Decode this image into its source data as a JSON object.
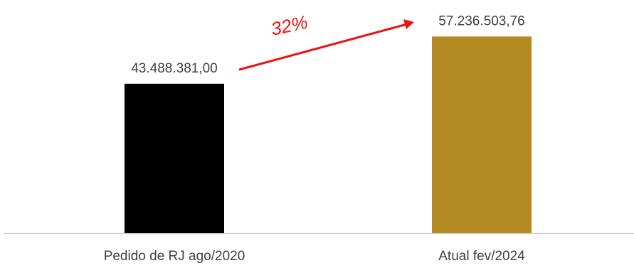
{
  "chart_data": {
    "type": "bar",
    "categories": [
      "Pedido de RJ ago/2020",
      "Atual fev/2024"
    ],
    "values": [
      43488381.0,
      57236503.76
    ],
    "value_labels": [
      "43.488.381,00",
      "57.236.503,76"
    ],
    "bar_colors": [
      "#000000",
      "#b38922"
    ],
    "annotation": {
      "text": "32%",
      "color": "#ee1111"
    },
    "title": "",
    "xlabel": "",
    "ylabel": "",
    "ylim": [
      0,
      60000000
    ],
    "grid": false,
    "legend": "none"
  }
}
